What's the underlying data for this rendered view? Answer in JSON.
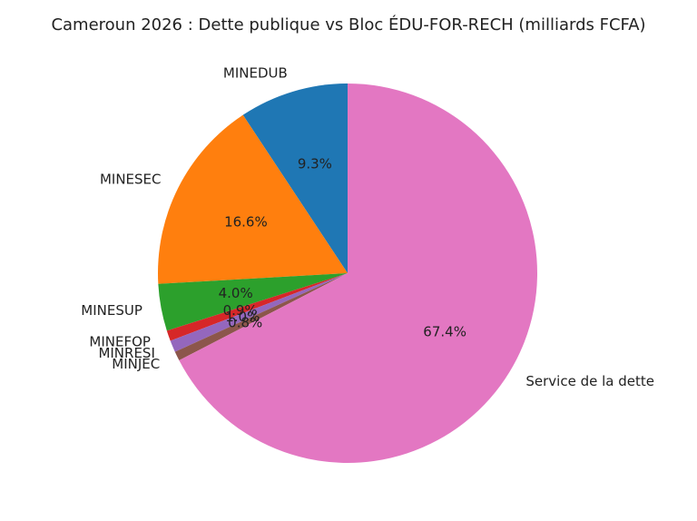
{
  "chart_data": {
    "type": "pie",
    "title": "Cameroun 2026 : Dette publique vs Bloc ÉDU-FOR-RECH (milliards FCFA)",
    "categories": [
      "MINEDUB",
      "MINESEC",
      "MINESUP",
      "MINEFOP",
      "MINRESI",
      "MINJEC",
      "Service de la dette"
    ],
    "values": [
      9.3,
      16.6,
      4.0,
      0.9,
      1.0,
      0.8,
      67.4
    ],
    "value_labels": [
      "9.3%",
      "16.6%",
      "4.0%",
      "0.9%",
      "1.0%",
      "0.8%",
      "67.4%"
    ],
    "colors": [
      "#1f77b4",
      "#ff7f0e",
      "#2ca02c",
      "#d62728",
      "#9467bd",
      "#8c564b",
      "#e377c2"
    ],
    "start_angle": 90
  }
}
